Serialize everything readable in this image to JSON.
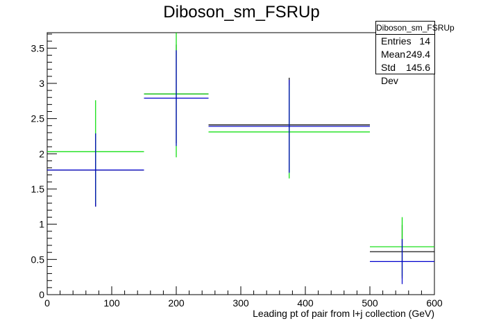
{
  "chart_data": {
    "type": "scatter",
    "title": "Diboson_sm_FSRUp",
    "xlabel": "Leading pt of pair from l+j collection (GeV)",
    "ylabel": "",
    "xlim": [
      0,
      600
    ],
    "ylim": [
      0,
      3.72
    ],
    "x_ticks": [
      0,
      100,
      200,
      300,
      400,
      500,
      600
    ],
    "y_ticks": [
      0,
      0.5,
      1,
      1.5,
      2,
      2.5,
      3,
      3.5
    ],
    "series": [
      {
        "color": "#000000",
        "points": [
          {
            "xlow": 0,
            "xhigh": 150,
            "y": 1.77,
            "err": 0.52
          },
          {
            "xlow": 150,
            "xhigh": 250,
            "y": 2.85,
            "err": 0.7
          },
          {
            "xlow": 250,
            "xhigh": 500,
            "y": 2.41,
            "err": 0.67
          },
          {
            "xlow": 500,
            "xhigh": 600,
            "y": 0.61,
            "err": 0.38
          }
        ]
      },
      {
        "color": "#00dd00",
        "points": [
          {
            "xlow": 0,
            "xhigh": 150,
            "y": 2.03,
            "err": 0.73
          },
          {
            "xlow": 150,
            "xhigh": 250,
            "y": 2.85,
            "err": 0.9
          },
          {
            "xlow": 250,
            "xhigh": 500,
            "y": 2.31,
            "err": 0.66
          },
          {
            "xlow": 500,
            "xhigh": 600,
            "y": 0.68,
            "err": 0.42
          }
        ]
      },
      {
        "color": "#0000cc",
        "points": [
          {
            "xlow": 0,
            "xhigh": 150,
            "y": 1.77,
            "err": 0.52
          },
          {
            "xlow": 150,
            "xhigh": 250,
            "y": 2.79,
            "err": 0.68
          },
          {
            "xlow": 250,
            "xhigh": 500,
            "y": 2.39,
            "err": 0.66
          },
          {
            "xlow": 500,
            "xhigh": 600,
            "y": 0.47,
            "err": 0.32
          }
        ]
      }
    ],
    "stats_box": {
      "title": "Diboson_sm_FSRUp",
      "entries_label": "Entries",
      "entries_value": "14",
      "mean_label": "Mean",
      "mean_value": "249.4",
      "stddev_label": "Std Dev",
      "stddev_value": "145.6"
    }
  }
}
